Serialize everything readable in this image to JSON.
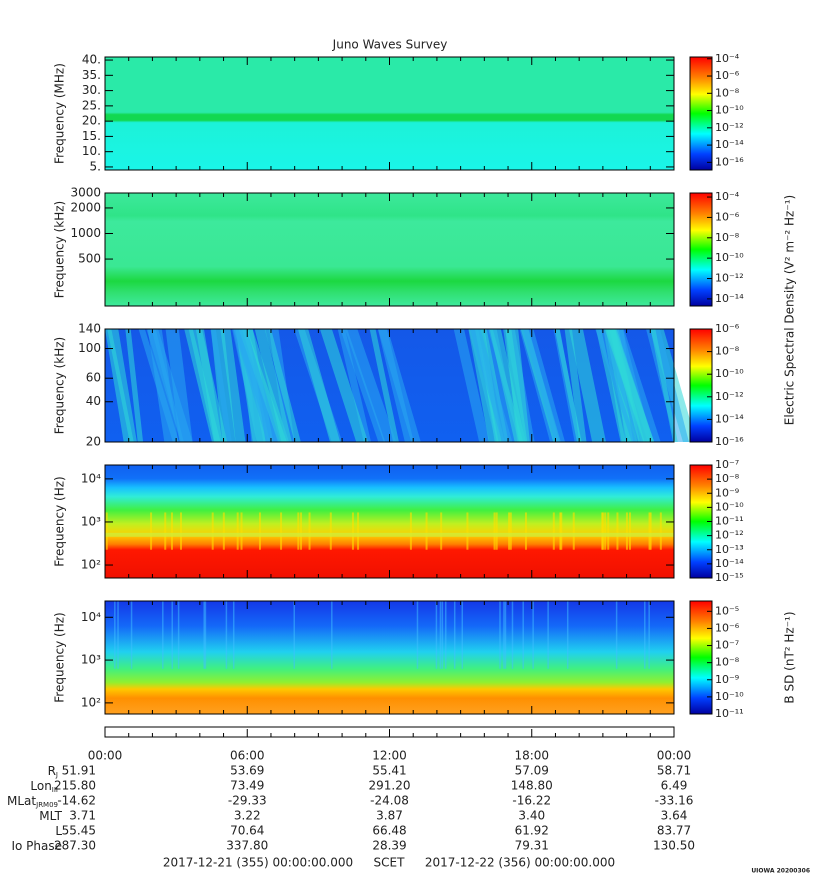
{
  "title": "Juno Waves Survey",
  "chart_data": [
    {
      "type": "heatmap",
      "ylabel": "Frequency (MHz)",
      "yscale": "linear",
      "ylim": [
        4,
        41
      ],
      "yticks": [
        {
          "value": 5,
          "label": "5."
        },
        {
          "value": 10,
          "label": "10."
        },
        {
          "value": 15,
          "label": "15."
        },
        {
          "value": 20,
          "label": "20."
        },
        {
          "value": 25,
          "label": "25."
        },
        {
          "value": 30,
          "label": "30."
        },
        {
          "value": 35,
          "label": "35."
        },
        {
          "value": 40,
          "label": "40."
        }
      ],
      "clim": [
        1.3e-17,
        0.00016
      ],
      "cticks": [
        {
          "value": 0.0001,
          "label": "10⁻⁴"
        },
        {
          "value": 1e-06,
          "label": "10⁻⁶"
        },
        {
          "value": 1e-08,
          "label": "10⁻⁸"
        },
        {
          "value": 1e-10,
          "label": "10⁻¹⁰"
        },
        {
          "value": 1e-12,
          "label": "10⁻¹²"
        },
        {
          "value": 1e-14,
          "label": "10⁻¹⁴"
        },
        {
          "value": 1e-16,
          "label": "10⁻¹⁶"
        }
      ]
    },
    {
      "type": "heatmap",
      "ylabel": "Frequency (kHz)",
      "yscale": "log",
      "ylim": [
        140,
        3000
      ],
      "yticks": [
        500,
        1000,
        2000,
        3000
      ],
      "clim": [
        2e-15,
        0.00025
      ],
      "cticks": [
        {
          "value": 0.0001,
          "label": "10⁻⁴"
        },
        {
          "value": 1e-06,
          "label": "10⁻⁶"
        },
        {
          "value": 1e-08,
          "label": "10⁻⁸"
        },
        {
          "value": 1e-10,
          "label": "10⁻¹⁰"
        },
        {
          "value": 1e-12,
          "label": "10⁻¹²"
        },
        {
          "value": 1e-14,
          "label": "10⁻¹⁴"
        }
      ],
      "clabel": "Electric Spectral Density (V² m⁻² Hz⁻¹)"
    },
    {
      "type": "heatmap",
      "ylabel": "Frequency (kHz)",
      "yscale": "log",
      "ylim": [
        20,
        140
      ],
      "yticks": [
        20,
        40,
        60,
        100,
        140
      ],
      "clim": [
        1e-16,
        1e-06
      ],
      "cticks": [
        {
          "value": 1e-06,
          "label": "10⁻⁶"
        },
        {
          "value": 1e-08,
          "label": "10⁻⁸"
        },
        {
          "value": 1e-10,
          "label": "10⁻¹⁰"
        },
        {
          "value": 1e-12,
          "label": "10⁻¹²"
        },
        {
          "value": 1e-14,
          "label": "10⁻¹⁴"
        },
        {
          "value": 1e-16,
          "label": "10⁻¹⁶"
        }
      ]
    },
    {
      "type": "heatmap",
      "ylabel": "Frequency (Hz)",
      "yscale": "log",
      "ylim": [
        50,
        21000
      ],
      "yticks": [
        {
          "value": 100,
          "label": "10²"
        },
        {
          "value": 1000,
          "label": "10³"
        },
        {
          "value": 10000,
          "label": "10⁴"
        }
      ],
      "clim": [
        1e-15,
        1e-07
      ],
      "cticks": [
        {
          "value": 1e-07,
          "label": "10⁻⁷"
        },
        {
          "value": 1e-08,
          "label": "10⁻⁸"
        },
        {
          "value": 1e-09,
          "label": "10⁻⁹"
        },
        {
          "value": 1e-10,
          "label": "10⁻¹⁰"
        },
        {
          "value": 1e-11,
          "label": "10⁻¹¹"
        },
        {
          "value": 1e-12,
          "label": "10⁻¹²"
        },
        {
          "value": 1e-13,
          "label": "10⁻¹³"
        },
        {
          "value": 1e-14,
          "label": "10⁻¹⁴"
        },
        {
          "value": 1e-15,
          "label": "10⁻¹⁵"
        }
      ]
    },
    {
      "type": "heatmap",
      "ylabel": "Frequency (Hz)",
      "yscale": "log",
      "ylim": [
        55,
        24000
      ],
      "yticks": [
        {
          "value": 100,
          "label": "10²"
        },
        {
          "value": 1000,
          "label": "10³"
        },
        {
          "value": 10000,
          "label": "10⁴"
        }
      ],
      "clim": [
        1e-11,
        4e-05
      ],
      "cticks": [
        {
          "value": 1e-05,
          "label": "10⁻⁵"
        },
        {
          "value": 1e-06,
          "label": "10⁻⁶"
        },
        {
          "value": 1e-07,
          "label": "10⁻⁷"
        },
        {
          "value": 1e-08,
          "label": "10⁻⁸"
        },
        {
          "value": 1e-09,
          "label": "10⁻⁹"
        },
        {
          "value": 1e-10,
          "label": "10⁻¹⁰"
        },
        {
          "value": 1e-11,
          "label": "10⁻¹¹"
        }
      ],
      "clabel": "B SD (nT² Hz⁻¹)"
    }
  ],
  "xticks": [
    "00:00",
    "06:00",
    "12:00",
    "18:00",
    "00:00"
  ],
  "ephemeris": [
    {
      "label": "R",
      "sub": "J",
      "values": [
        "51.91",
        "53.69",
        "55.41",
        "57.09",
        "58.71"
      ]
    },
    {
      "label": "Lon",
      "sub": "III",
      "values": [
        "215.80",
        "73.49",
        "291.20",
        "148.80",
        "6.49"
      ]
    },
    {
      "label": "MLat",
      "sub": "JRM09",
      "values": [
        "-14.62",
        "-29.33",
        "-24.08",
        "-16.22",
        "-33.16"
      ]
    },
    {
      "label": "MLT",
      "values": [
        "3.71",
        "3.22",
        "3.87",
        "3.40",
        "3.64"
      ]
    },
    {
      "label": "L",
      "values": [
        "55.45",
        "70.64",
        "66.48",
        "61.92",
        "83.77"
      ]
    },
    {
      "label": "Io Phase",
      "values": [
        "287.30",
        "337.80",
        "28.39",
        "79.31",
        "130.50"
      ]
    }
  ],
  "scet": {
    "start": "2017-12-21 (355) 00:00:00.000",
    "label": "SCET",
    "end": "2017-12-22 (356) 00:00:00.000"
  },
  "footer": "UIOWA 20200306"
}
